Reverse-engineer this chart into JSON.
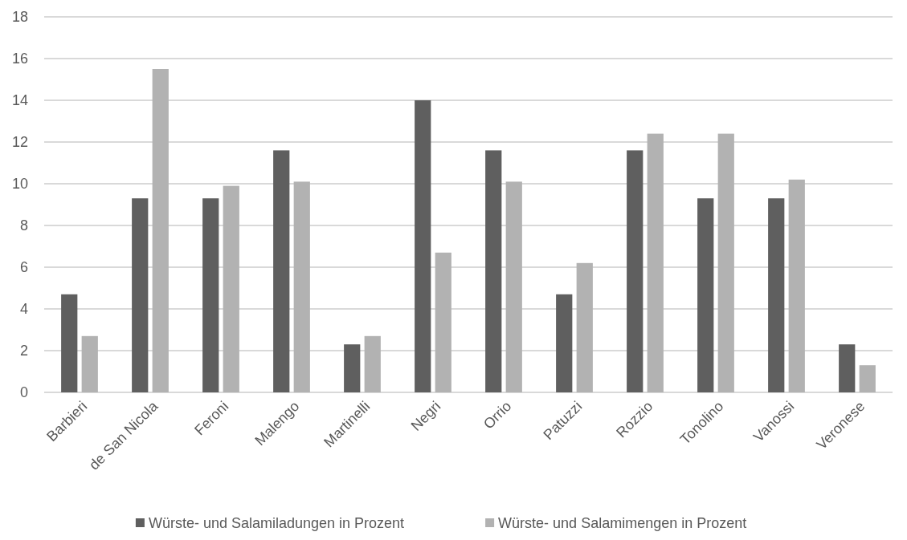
{
  "chart_data": {
    "type": "bar",
    "categories": [
      "Barbieri",
      "de San Nicola",
      "Feroni",
      "Malengo",
      "Martinelli",
      "Negri",
      "Orrio",
      "Patuzzi",
      "Rozzio",
      "Tonolino",
      "Vanossi",
      "Veronese"
    ],
    "series": [
      {
        "name": "Würste- und Salamiladungen in Prozent",
        "color": "#5f5f5f",
        "values": [
          4.7,
          9.3,
          9.3,
          11.6,
          2.3,
          14.0,
          11.6,
          4.7,
          11.6,
          9.3,
          9.3,
          2.3
        ]
      },
      {
        "name": "Würste- und Salamimengen in Prozent",
        "color": "#b2b2b2",
        "values": [
          2.7,
          15.5,
          9.9,
          10.1,
          2.7,
          6.7,
          10.1,
          6.2,
          12.4,
          12.4,
          10.2,
          1.3
        ]
      }
    ],
    "ylim": [
      0,
      18
    ],
    "yticks": [
      0,
      2,
      4,
      6,
      8,
      10,
      12,
      14,
      16,
      18
    ],
    "grid": "y",
    "legend": "bottom"
  }
}
